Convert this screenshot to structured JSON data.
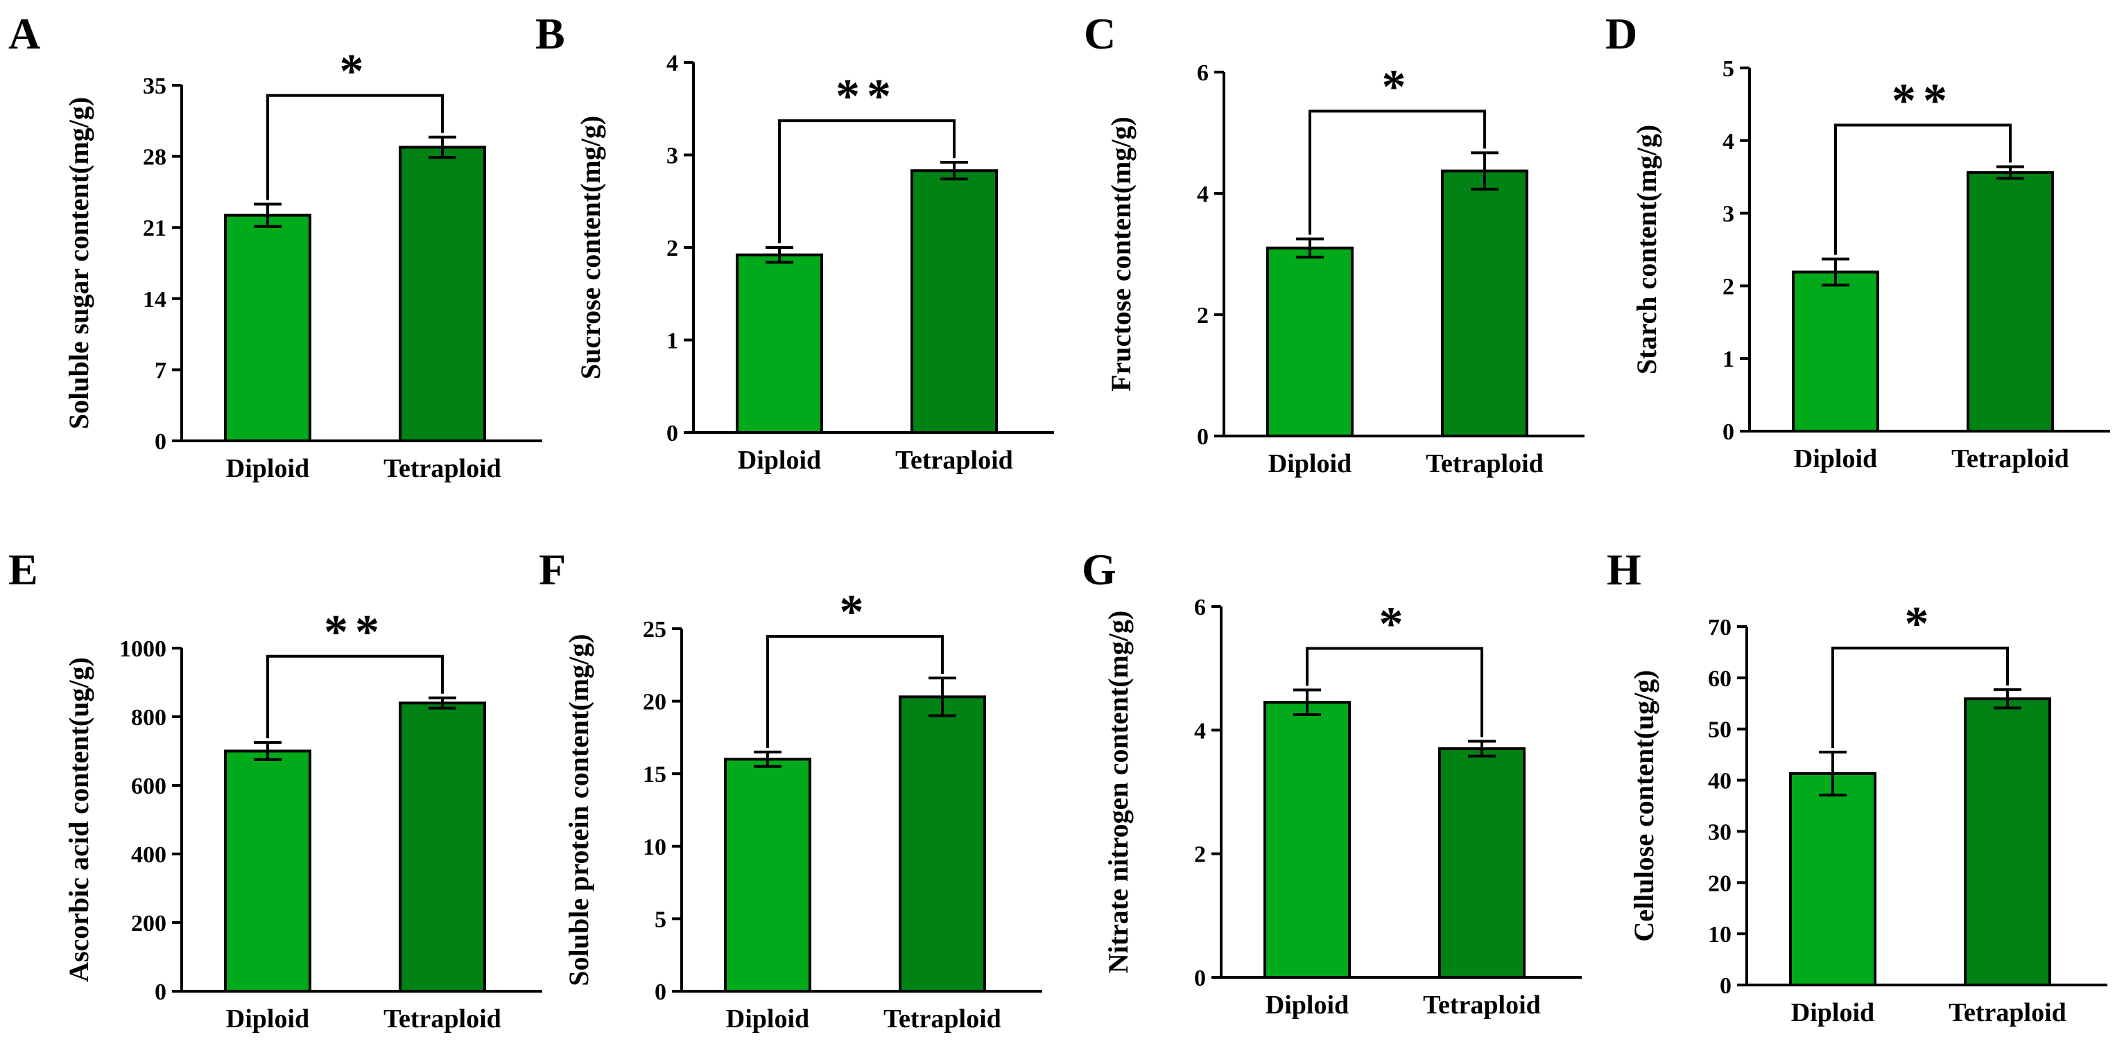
{
  "chart_data": [
    {
      "type": "bar",
      "panel_label": "A",
      "ylabel": "Soluble sugar content(mg/g)",
      "categories": [
        "Diploid",
        "Tetraploid"
      ],
      "values": [
        22.2,
        28.9
      ],
      "errors": [
        1.1,
        1.0
      ],
      "ylim": [
        0,
        35
      ],
      "ticks": [
        "0",
        "7",
        "14",
        "21",
        "28",
        "35"
      ],
      "significance": "*",
      "colors": [
        "#00aa1b",
        "#008214"
      ]
    },
    {
      "type": "bar",
      "panel_label": "B",
      "ylabel": "Sucrose content(mg/g)",
      "categories": [
        "Diploid",
        "Tetraploid"
      ],
      "values": [
        1.92,
        2.83
      ],
      "errors": [
        0.08,
        0.09
      ],
      "ylim": [
        0,
        4
      ],
      "ticks": [
        "0",
        "1",
        "2",
        "3",
        "4"
      ],
      "significance": "**",
      "colors": [
        "#00aa1b",
        "#008214"
      ]
    },
    {
      "type": "bar",
      "panel_label": "C",
      "ylabel": "Fructose content(mg/g)",
      "categories": [
        "Diploid",
        "Tetraploid"
      ],
      "values": [
        3.1,
        4.37
      ],
      "errors": [
        0.15,
        0.3
      ],
      "ylim": [
        0,
        6
      ],
      "ticks": [
        "0",
        "2",
        "4",
        "6"
      ],
      "significance": "*",
      "colors": [
        "#00aa1b",
        "#008214"
      ]
    },
    {
      "type": "bar",
      "panel_label": "D",
      "ylabel": "Starch content(mg/g)",
      "categories": [
        "Diploid",
        "Tetraploid"
      ],
      "values": [
        2.19,
        3.56
      ],
      "errors": [
        0.18,
        0.08
      ],
      "ylim": [
        0,
        5
      ],
      "ticks": [
        "0",
        "1",
        "2",
        "3",
        "4",
        "5"
      ],
      "significance": "**",
      "colors": [
        "#00aa1b",
        "#008214"
      ]
    },
    {
      "type": "bar",
      "panel_label": "E",
      "ylabel": "Ascorbic acid content(ug/g)",
      "categories": [
        "Diploid",
        "Tetraploid"
      ],
      "values": [
        700,
        840
      ],
      "errors": [
        25,
        15
      ],
      "ylim": [
        0,
        1000
      ],
      "ticks": [
        "0",
        "200",
        "400",
        "600",
        "800",
        "1000"
      ],
      "significance": "**",
      "colors": [
        "#00aa1b",
        "#008214"
      ]
    },
    {
      "type": "bar",
      "panel_label": "F",
      "ylabel": "Soluble protein content(mg/g)",
      "categories": [
        "Diploid",
        "Tetraploid"
      ],
      "values": [
        16.0,
        20.3
      ],
      "errors": [
        0.5,
        1.3
      ],
      "ylim": [
        0,
        25
      ],
      "ticks": [
        "0",
        "5",
        "10",
        "15",
        "20",
        "25"
      ],
      "significance": "*",
      "colors": [
        "#00aa1b",
        "#008214"
      ]
    },
    {
      "type": "bar",
      "panel_label": "G",
      "ylabel": "Nitrate nitrogen content(mg/g)",
      "categories": [
        "Diploid",
        "Tetraploid"
      ],
      "values": [
        4.45,
        3.7
      ],
      "errors": [
        0.2,
        0.12
      ],
      "ylim": [
        0,
        6
      ],
      "ticks": [
        "0",
        "2",
        "4",
        "6"
      ],
      "significance": "*",
      "colors": [
        "#00aa1b",
        "#008214"
      ]
    },
    {
      "type": "bar",
      "panel_label": "H",
      "ylabel": "Cellulose content(ug/g)",
      "categories": [
        "Diploid",
        "Tetraploid"
      ],
      "values": [
        41.3,
        55.9
      ],
      "errors": [
        4.2,
        1.8
      ],
      "ylim": [
        0,
        70
      ],
      "ticks": [
        "0",
        "10",
        "20",
        "30",
        "40",
        "50",
        "60",
        "70"
      ],
      "significance": "*",
      "colors": [
        "#00aa1b",
        "#008214"
      ]
    }
  ]
}
